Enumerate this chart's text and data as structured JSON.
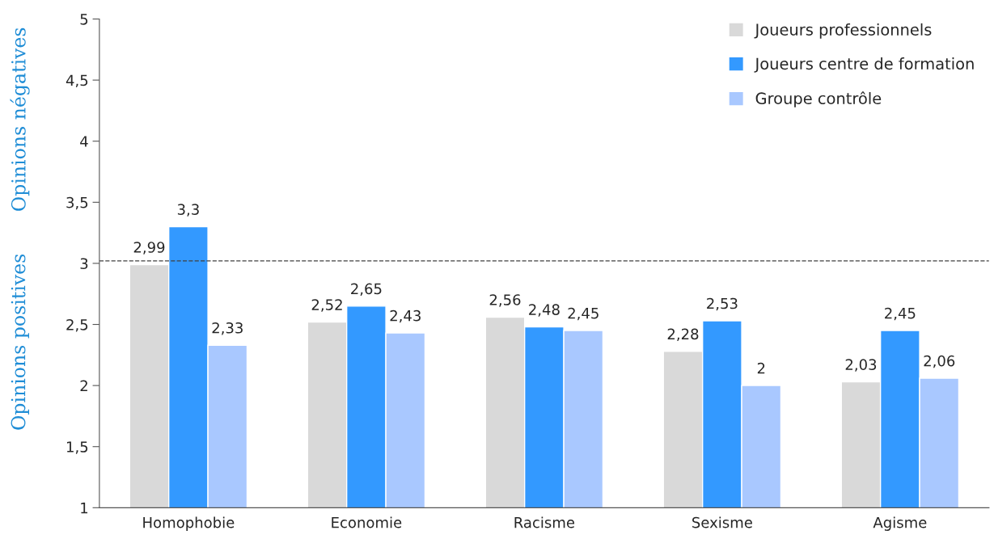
{
  "chart_data": {
    "type": "bar",
    "categories": [
      "Homophobie",
      "Economie",
      "Racisme",
      "Sexisme",
      "Agisme"
    ],
    "series": [
      {
        "name": "Joueurs professionnels",
        "color": "#d9d9d9",
        "values": [
          2.99,
          2.52,
          2.56,
          2.28,
          2.03
        ],
        "value_labels": [
          "2,99",
          "2,52",
          "2,56",
          "2,28",
          "2,03"
        ]
      },
      {
        "name": "Joueurs centre de formation",
        "color": "#3399ff",
        "values": [
          3.3,
          2.65,
          2.48,
          2.53,
          2.45
        ],
        "value_labels": [
          "3,3",
          "2,65",
          "2,48",
          "2,53",
          "2,45"
        ]
      },
      {
        "name": "Groupe contrôle",
        "color": "#a9c8ff",
        "values": [
          2.33,
          2.43,
          2.45,
          2.0,
          2.06
        ],
        "value_labels": [
          "2,33",
          "2,43",
          "2,45",
          "2",
          "2,06"
        ]
      }
    ],
    "ylim": [
      1,
      5
    ],
    "yticks": [
      1,
      {
        "value": 1.5,
        "label": "1,5"
      },
      2,
      {
        "value": 2.5,
        "label": "2,5"
      },
      3,
      {
        "value": 3.5,
        "label": "3,5"
      },
      4,
      {
        "value": 4.5,
        "label": "4,5"
      },
      5
    ],
    "ref_lines": [
      {
        "axis": "y",
        "value": 3.02,
        "line_style": "dashed",
        "color": "#404040"
      }
    ],
    "annotations": [
      "Opinions négatives",
      "Opinions positives"
    ],
    "legend": "top right",
    "grid": false
  }
}
